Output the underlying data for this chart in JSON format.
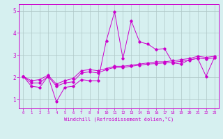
{
  "title": "",
  "xlabel": "Windchill (Refroidissement éolien,°C)",
  "ylabel": "",
  "background_color": "#d6f0f0",
  "line_color": "#cc00cc",
  "grid_color": "#b0c8c8",
  "xlim": [
    -0.5,
    23.5
  ],
  "ylim": [
    0.6,
    5.3
  ],
  "yticks": [
    1,
    2,
    3,
    4,
    5
  ],
  "xticks": [
    0,
    1,
    2,
    3,
    4,
    5,
    6,
    7,
    8,
    9,
    10,
    11,
    12,
    13,
    14,
    15,
    16,
    17,
    18,
    19,
    20,
    21,
    22,
    23
  ],
  "series1": [
    2.05,
    1.6,
    1.55,
    2.05,
    0.9,
    1.55,
    1.6,
    1.9,
    1.85,
    1.85,
    3.65,
    4.95,
    2.85,
    4.55,
    3.6,
    3.5,
    3.25,
    3.3,
    2.65,
    2.6,
    2.8,
    2.85,
    2.05,
    2.9
  ],
  "series2": [
    2.05,
    1.75,
    1.75,
    2.05,
    1.6,
    1.75,
    1.8,
    2.2,
    2.25,
    2.2,
    2.35,
    2.45,
    2.45,
    2.5,
    2.55,
    2.6,
    2.62,
    2.65,
    2.68,
    2.72,
    2.77,
    2.87,
    2.83,
    2.88
  ],
  "series3": [
    2.05,
    1.85,
    1.9,
    2.1,
    1.7,
    1.85,
    1.95,
    2.3,
    2.35,
    2.3,
    2.4,
    2.5,
    2.5,
    2.55,
    2.6,
    2.65,
    2.7,
    2.7,
    2.75,
    2.8,
    2.85,
    2.95,
    2.9,
    2.95
  ]
}
